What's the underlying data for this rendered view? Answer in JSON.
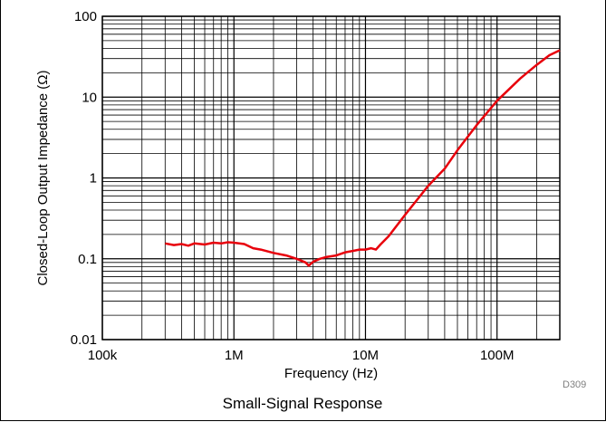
{
  "chart_data": {
    "type": "line",
    "xlabel": "Frequency (Hz)",
    "ylabel": "Closed-Loop Output Impedance (Ω)",
    "x_scale": "log",
    "y_scale": "log",
    "xlim": [
      100000,
      300000000
    ],
    "ylim": [
      0.01,
      100
    ],
    "x_ticks": [
      {
        "value": 100000,
        "label": "100k"
      },
      {
        "value": 1000000,
        "label": "1M"
      },
      {
        "value": 10000000,
        "label": "10M"
      },
      {
        "value": 100000000,
        "label": "100M"
      }
    ],
    "y_ticks": [
      {
        "value": 100,
        "label": "100"
      },
      {
        "value": 10,
        "label": "10"
      },
      {
        "value": 1,
        "label": "1"
      },
      {
        "value": 0.1,
        "label": "0.1"
      },
      {
        "value": 0.01,
        "label": "0.01"
      }
    ],
    "grid": true,
    "series": [
      {
        "color": "#e8000b",
        "x": [
          300000,
          350000,
          400000,
          450000,
          500000,
          600000,
          700000,
          800000,
          900000,
          1000000,
          1200000,
          1400000,
          1600000,
          2000000,
          2500000,
          3000000,
          3500000,
          3700000,
          4000000,
          4500000,
          5000000,
          6000000,
          7000000,
          8000000,
          9000000,
          10000000,
          11000000,
          12000000,
          13000000,
          15000000,
          20000000,
          30000000,
          40000000,
          50000000,
          70000000,
          100000000,
          150000000,
          200000000,
          250000000,
          300000000
        ],
        "y": [
          0.155,
          0.148,
          0.152,
          0.145,
          0.155,
          0.15,
          0.158,
          0.155,
          0.16,
          0.158,
          0.152,
          0.135,
          0.13,
          0.118,
          0.11,
          0.1,
          0.09,
          0.082,
          0.092,
          0.1,
          0.105,
          0.11,
          0.12,
          0.125,
          0.13,
          0.13,
          0.135,
          0.13,
          0.15,
          0.19,
          0.35,
          0.8,
          1.3,
          2.2,
          4.5,
          9.0,
          17.0,
          25.0,
          33.0,
          38.0
        ]
      }
    ]
  },
  "figure_code": "D309",
  "caption": "Small-Signal Response"
}
